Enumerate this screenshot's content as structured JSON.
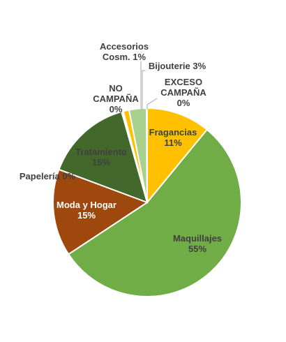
{
  "chart_data": {
    "type": "pie",
    "slices": [
      {
        "name": "Fragancias",
        "label": "Fragancias",
        "percent_label": "11%",
        "value": 11,
        "color": "#ffc000",
        "label_color": "#404040"
      },
      {
        "name": "Maquillajes",
        "label": "Maquillajes",
        "percent_label": "55%",
        "value": 55,
        "color": "#70ad47",
        "label_color": "#404040"
      },
      {
        "name": "Moda y Hogar",
        "label": "Moda y Hogar",
        "percent_label": "15%",
        "value": 15,
        "color": "#9e480e",
        "label_color": "#ffffff"
      },
      {
        "name": "Papelería",
        "label": "Papelería",
        "percent_label": "0%",
        "value": 0,
        "color": "#c55a11",
        "label_color": "#404040"
      },
      {
        "name": "Tratamiento",
        "label": "Tratamiento",
        "percent_label": "15%",
        "value": 15,
        "color": "#43682b",
        "label_color": "#404040"
      },
      {
        "name": "NO CAMPAÑA",
        "label": "NO CAMPAÑA",
        "percent_label": "0%",
        "value": 0.3,
        "color": "#ffffff",
        "label_color": "#404040"
      },
      {
        "name": "Accesorios Cosm.",
        "label": "Accesorios Cosm.",
        "percent_label": "1%",
        "value": 1,
        "color": "#ffc000",
        "label_color": "#404040"
      },
      {
        "name": "Bijouterie",
        "label": "Bijouterie",
        "percent_label": "3%",
        "value": 3,
        "color": "#a9d18e",
        "label_color": "#404040"
      },
      {
        "name": "EXCESO CAMPAÑA",
        "label": "EXCESO CAMPAÑA",
        "percent_label": "0%",
        "value": 0.1,
        "color": "#ffffff",
        "label_color": "#404040"
      }
    ]
  }
}
